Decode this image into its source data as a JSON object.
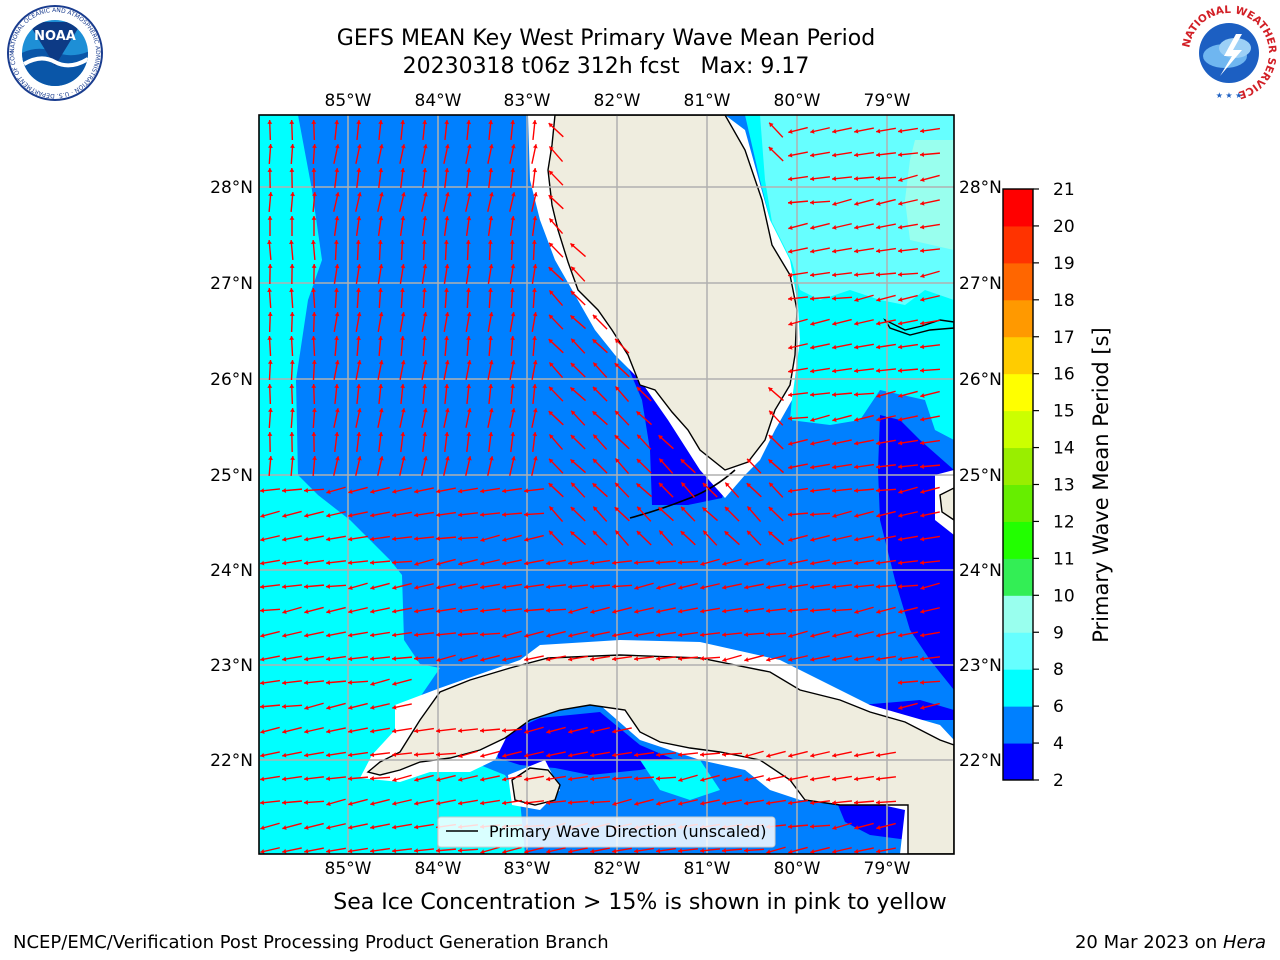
{
  "title_line1": "GEFS MEAN Key West Primary Wave Mean Period",
  "title_line2": "20230318 t06z 312h fcst   Max: 9.17",
  "map": {
    "lon_labels": [
      "85°W",
      "84°W",
      "83°W",
      "82°W",
      "81°W",
      "80°W",
      "79°W"
    ],
    "lat_labels": [
      "28°N",
      "27°N",
      "26°N",
      "25°N",
      "24°N",
      "23°N",
      "22°N"
    ],
    "legend_label": "Primary Wave Direction (unscaled)",
    "arrow_color": "#ff0000"
  },
  "colorbar": {
    "label": "Primary Wave Mean Period [s]",
    "ticks": [
      "2",
      "4",
      "6",
      "8",
      "9",
      "10",
      "11",
      "12",
      "13",
      "14",
      "15",
      "16",
      "17",
      "18",
      "19",
      "20",
      "21"
    ],
    "colors": [
      "#0000ff",
      "#0080ff",
      "#00ffff",
      "#66ffff",
      "#99ffee",
      "#33ee55",
      "#22ff00",
      "#66ee00",
      "#99ee00",
      "#ccff00",
      "#ffff00",
      "#ffcc00",
      "#ff9900",
      "#ff6600",
      "#ff3300",
      "#ff0000"
    ]
  },
  "sea_ice_note": "Sea Ice Concentration > 15% is shown in pink to yellow",
  "footer_left": "NCEP/EMC/Verification Post Processing Product Generation Branch",
  "footer_right_prefix": "20 Mar 2023 on ",
  "footer_right_host": "Hera",
  "logos": {
    "noaa_text": "NOAA",
    "noaa_ring_text": "NATIONAL OCEANIC AND ATMOSPHERIC ADMINISTRATION · U.S. DEPARTMENT OF COMMERCE ·",
    "nws_ring_text": "NATIONAL WEATHER SERVICE"
  }
}
